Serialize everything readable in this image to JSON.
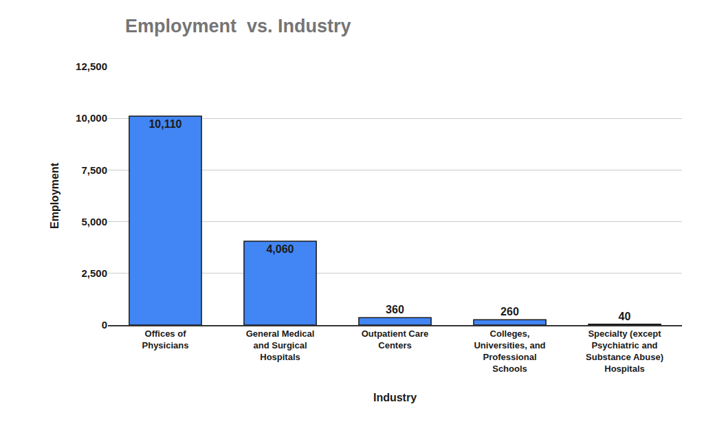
{
  "chart_data": {
    "type": "bar",
    "title": "Employment  vs. Industry",
    "x_label": "Industry",
    "y_label": "Employment",
    "categories": [
      "Offices of Physicians",
      "General Medical and Surgical Hospitals",
      "Outpatient Care Centers",
      "Colleges, Universities, and Professional Schools",
      "Specialty (except Psychiatric and Substance Abuse) Hospitals"
    ],
    "values": [
      10110,
      4060,
      360,
      260,
      40
    ],
    "value_labels": [
      "10,110",
      "4,060",
      "360",
      "260",
      "40"
    ],
    "color": "#4285f4",
    "ylim": [
      0,
      12500
    ],
    "yticks": [
      0,
      {
        "value": 2500,
        "label": "2,500"
      },
      {
        "value": 5000,
        "label": "5,000"
      },
      {
        "value": 7500,
        "label": "7,500"
      },
      {
        "value": 10000,
        "label": "10,000"
      },
      {
        "value": 12500,
        "label": "12,500"
      }
    ],
    "grid": true,
    "data_labels": true
  }
}
